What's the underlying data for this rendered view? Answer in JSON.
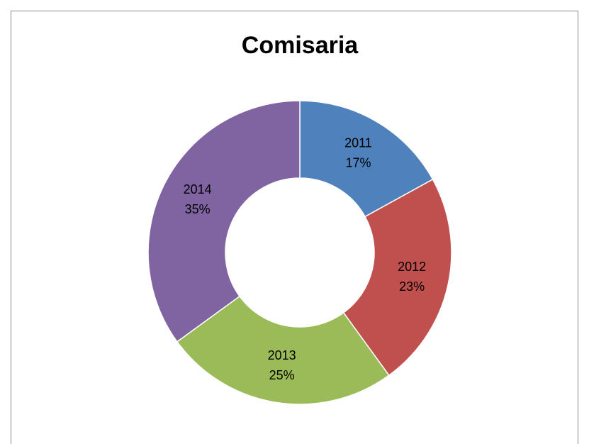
{
  "chart_data": {
    "type": "donut",
    "title": "Comisaria",
    "categories": [
      "2011",
      "2012",
      "2013",
      "2014"
    ],
    "values": [
      17,
      23,
      25,
      35
    ],
    "value_labels": [
      "17%",
      "23%",
      "25%",
      "35%"
    ],
    "colors": [
      "#4f81bd",
      "#c0504d",
      "#9bbb59",
      "#8064a2"
    ]
  }
}
